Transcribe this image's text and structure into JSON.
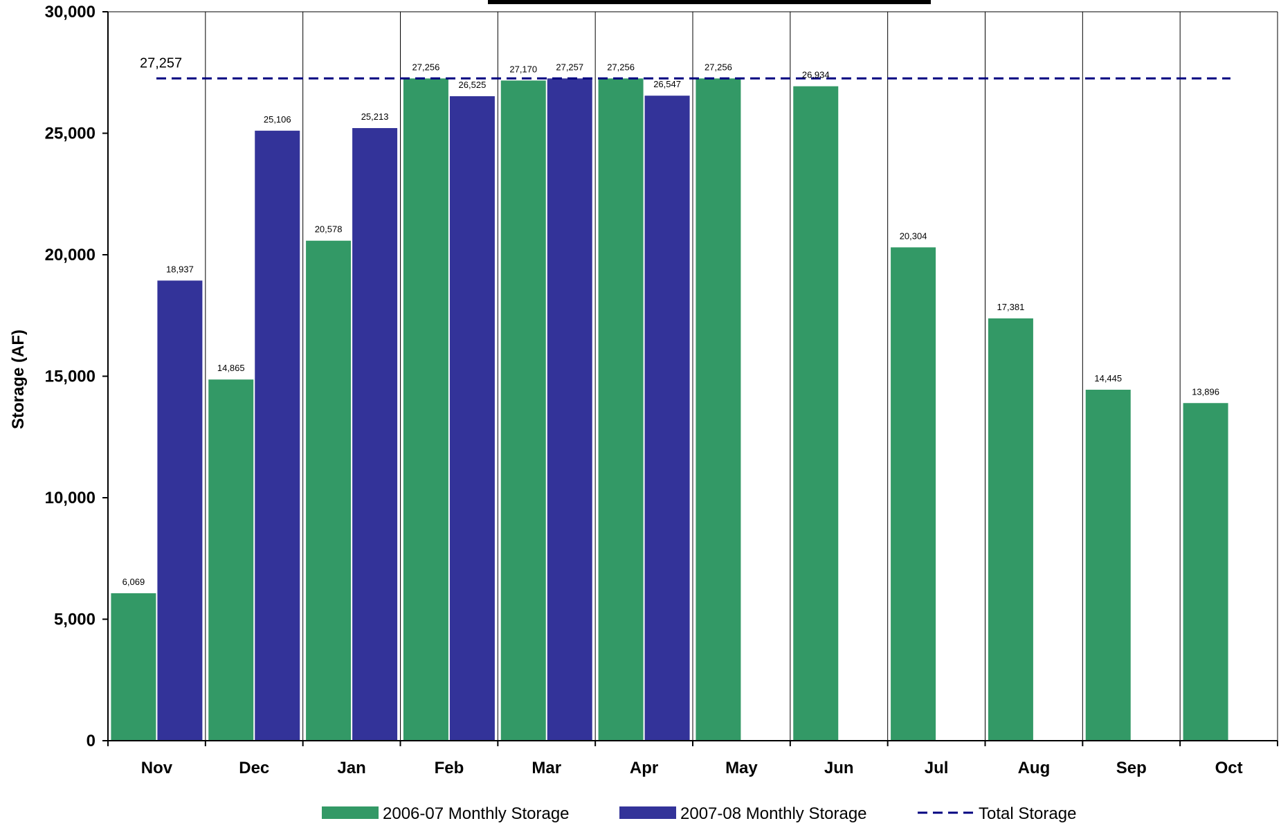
{
  "chart_data": {
    "type": "bar",
    "title": "",
    "xlabel": "",
    "ylabel": "Storage (AF)",
    "ylim": [
      0,
      30000
    ],
    "yticks": [
      0,
      5000,
      10000,
      15000,
      20000,
      25000,
      30000
    ],
    "ytick_labels": [
      "0",
      "5,000",
      "10,000",
      "15,000",
      "20,000",
      "25,000",
      "30,000"
    ],
    "categories": [
      "Nov",
      "Dec",
      "Jan",
      "Feb",
      "Mar",
      "Apr",
      "May",
      "Jun",
      "Jul",
      "Aug",
      "Sep",
      "Oct"
    ],
    "series": [
      {
        "name": "2006-07 Monthly Storage",
        "color": "#339966",
        "values": [
          6069,
          14865,
          20578,
          27256,
          27170,
          27256,
          27256,
          26934,
          20304,
          17381,
          14445,
          13896
        ],
        "labels": [
          "6,069",
          "14,865",
          "20,578",
          "27,256",
          "27,170",
          "27,256",
          "27,256",
          "26,934",
          "20,304",
          "17,381",
          "14,445",
          "13,896"
        ]
      },
      {
        "name": "2007-08 Monthly Storage",
        "color": "#333399",
        "values": [
          18937,
          25106,
          25213,
          26525,
          27257,
          26547,
          null,
          null,
          null,
          null,
          null,
          null
        ],
        "labels": [
          "18,937",
          "25,106",
          "25,213",
          "26,525",
          "27,257",
          "26,547",
          "",
          "",
          "",
          "",
          "",
          ""
        ]
      }
    ],
    "reference_line": {
      "name": "Total Storage",
      "value": 27257,
      "label": "27,257",
      "color": "#000080",
      "style": "dashed"
    },
    "grid": "vertical category separators",
    "legend": "bottom-center"
  }
}
